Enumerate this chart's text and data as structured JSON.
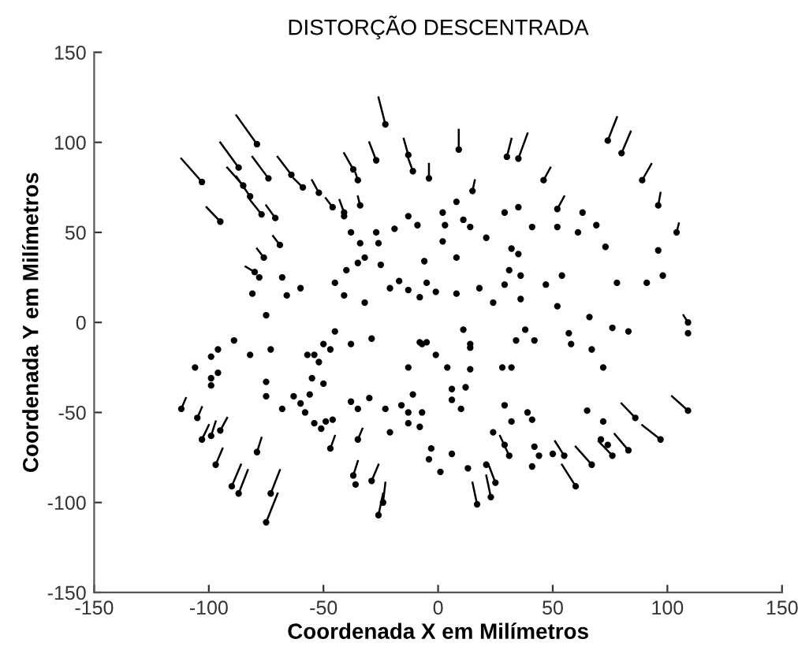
{
  "chart_data": {
    "type": "scatter",
    "title": "DISTORÇÃO DESCENTRADA",
    "xlabel": "Coordenada X em Milímetros",
    "ylabel": "Coordenada Y em Milímetros",
    "xlim": [
      -150,
      150
    ],
    "ylim": [
      -150,
      150
    ],
    "xticks": [
      -150,
      -100,
      -50,
      0,
      50,
      100,
      150
    ],
    "yticks": [
      -150,
      -100,
      -50,
      0,
      50,
      100,
      150
    ],
    "grid": false,
    "marker": "circle",
    "series": [
      {
        "color": "#000000",
        "x": [
          -103,
          -95,
          -79,
          -87,
          -85,
          -82,
          -74,
          -77,
          -71,
          -64,
          -59,
          -52,
          -46,
          -41,
          -37,
          -35,
          -27,
          -23,
          -13,
          -11,
          -34,
          -41,
          -38,
          -27,
          -69,
          -76,
          -80,
          -78,
          -81,
          -75,
          -68,
          -66,
          -60,
          -45,
          -41,
          -40,
          -35,
          -32,
          -34,
          -26,
          -25,
          -32,
          -21,
          -17,
          -13,
          -8,
          -19,
          -13,
          -9,
          -6,
          9,
          30,
          35,
          74,
          80,
          89,
          96,
          104,
          96,
          98,
          91,
          78,
          73,
          69,
          63,
          61,
          52,
          52,
          46,
          41,
          35,
          29,
          15,
          8,
          2,
          -4,
          11,
          14,
          3,
          21,
          2,
          8,
          32,
          35,
          31,
          36,
          29,
          47,
          54,
          36,
          24,
          18,
          8,
          -1,
          -5,
          52,
          66,
          -112,
          -105,
          -103,
          -99,
          -95,
          -97,
          -90,
          -87,
          -79,
          -73,
          -75,
          -106,
          -99,
          -96,
          -99,
          -99,
          -96,
          -89,
          -82,
          -73,
          -75,
          -75,
          -68,
          -63,
          -60,
          -58,
          -56,
          -55,
          -57,
          -54,
          -52,
          -50,
          -47,
          -45,
          -50,
          -54,
          -51,
          -49,
          -46,
          -47,
          -38,
          -29,
          -38,
          -35,
          -30,
          -35,
          -37,
          -36,
          -29,
          -24,
          -26,
          -23,
          -21,
          -16,
          -13,
          -11,
          -13,
          -13,
          -7,
          -8,
          -8,
          -5,
          -1,
          11,
          14,
          14,
          4,
          14,
          -7,
          6,
          6,
          12,
          10,
          28,
          32,
          38,
          34,
          42,
          57,
          58,
          67,
          72,
          76,
          83,
          109,
          109,
          109,
          97,
          86,
          83,
          76,
          74,
          71,
          72,
          65,
          67,
          60,
          55,
          50,
          44,
          41,
          42,
          41,
          39,
          32,
          29,
          31,
          29,
          24,
          25,
          23,
          21,
          17,
          13,
          6,
          1,
          -3,
          -4
        ],
        "values": [
          78,
          56,
          99,
          86,
          76,
          70,
          80,
          60,
          58,
          82,
          75,
          72,
          64,
          61,
          85,
          79,
          90,
          110,
          93,
          84,
          65,
          59,
          50,
          50,
          43,
          36,
          28,
          25,
          16,
          4,
          25,
          15,
          19,
          22,
          15,
          29,
          33,
          36,
          44,
          44,
          32,
          11,
          19,
          23,
          18,
          14,
          52,
          59,
          54,
          34,
          96,
          92,
          91,
          101,
          94,
          79,
          65,
          50,
          40,
          26,
          22,
          22,
          42,
          54,
          61,
          50,
          63,
          53,
          79,
          53,
          64,
          61,
          73,
          67,
          61,
          80,
          57,
          53,
          54,
          47,
          45,
          36,
          41,
          38,
          29,
          26,
          21,
          21,
          26,
          13,
          11,
          19,
          16,
          17,
          22,
          9,
          3,
          -48,
          -53,
          -65,
          -63,
          -60,
          -79,
          -91,
          -95,
          -72,
          -95,
          -111,
          -25,
          -19,
          -15,
          -35,
          -31,
          -28,
          -10,
          -18,
          -15,
          -33,
          -41,
          -48,
          -41,
          -45,
          -50,
          -40,
          -31,
          -18,
          -18,
          -22,
          -12,
          -15,
          -5,
          -34,
          -56,
          -59,
          -55,
          -54,
          -70,
          -12,
          -9,
          -44,
          -48,
          -42,
          -65,
          -85,
          -90,
          -88,
          -100,
          -107,
          -48,
          -61,
          -46,
          -25,
          -40,
          -56,
          -50,
          -12,
          -58,
          -11,
          -11,
          -18,
          -4,
          -12,
          -14,
          -25,
          -26,
          -50,
          -37,
          -43,
          -36,
          -48,
          -25,
          -25,
          -4,
          -10,
          -10,
          -6,
          -12,
          -15,
          -25,
          -3,
          -5,
          0,
          -6,
          -49,
          -65,
          -53,
          -71,
          -74,
          -68,
          -65,
          -55,
          -49,
          -79,
          -91,
          -74,
          -73,
          -74,
          -80,
          -69,
          -54,
          -50,
          -55,
          -46,
          -74,
          -68,
          -61,
          -89,
          -97,
          -79,
          -101,
          -81,
          -73,
          -83,
          -70,
          -76
        ]
      },
      {
        "type": "line",
        "color": "#000000",
        "marker": "none",
        "x": [
          -112,
          -103
        ],
        "values": [
          91,
          78
        ]
      },
      {
        "type": "line",
        "color": "#000000",
        "marker": "none",
        "x": [
          -101,
          -95
        ],
        "values": [
          64,
          56
        ]
      },
      {
        "type": "line",
        "color": "#000000",
        "marker": "none",
        "x": [
          -88,
          -79
        ],
        "values": [
          115,
          99
        ]
      },
      {
        "type": "line",
        "color": "#000000",
        "marker": "none",
        "x": [
          -95,
          -87
        ],
        "values": [
          100,
          86
        ]
      },
      {
        "type": "line",
        "color": "#000000",
        "marker": "none",
        "x": [
          -92,
          -85
        ],
        "values": [
          86,
          76
        ]
      },
      {
        "type": "line",
        "color": "#000000",
        "marker": "none",
        "x": [
          -88,
          -82
        ],
        "values": [
          81,
          70
        ]
      },
      {
        "type": "line",
        "color": "#000000",
        "marker": "none",
        "x": [
          -81,
          -74
        ],
        "values": [
          92,
          80
        ]
      },
      {
        "type": "line",
        "color": "#000000",
        "marker": "none",
        "x": [
          -82,
          -77
        ],
        "values": [
          68,
          60
        ]
      },
      {
        "type": "line",
        "color": "#000000",
        "marker": "none",
        "x": [
          -75,
          -71
        ],
        "values": [
          65,
          58
        ]
      },
      {
        "type": "line",
        "color": "#000000",
        "marker": "none",
        "x": [
          -70,
          -64
        ],
        "values": [
          92,
          82
        ]
      },
      {
        "type": "line",
        "color": "#000000",
        "marker": "none",
        "x": [
          -63,
          -59
        ],
        "values": [
          80,
          75
        ]
      },
      {
        "type": "line",
        "color": "#000000",
        "marker": "none",
        "x": [
          -55,
          -52
        ],
        "values": [
          79,
          72
        ]
      },
      {
        "type": "line",
        "color": "#000000",
        "marker": "none",
        "x": [
          -49,
          -46
        ],
        "values": [
          69,
          64
        ]
      },
      {
        "type": "line",
        "color": "#000000",
        "marker": "none",
        "x": [
          -43,
          -41
        ],
        "values": [
          68,
          61
        ]
      },
      {
        "type": "line",
        "color": "#000000",
        "marker": "none",
        "x": [
          -41,
          -37
        ],
        "values": [
          94,
          85
        ]
      },
      {
        "type": "line",
        "color": "#000000",
        "marker": "none",
        "x": [
          -36,
          -35
        ],
        "values": [
          83,
          79
        ]
      },
      {
        "type": "line",
        "color": "#000000",
        "marker": "none",
        "x": [
          -30,
          -27
        ],
        "values": [
          100,
          90
        ]
      },
      {
        "type": "line",
        "color": "#000000",
        "marker": "none",
        "x": [
          -26,
          -23
        ],
        "values": [
          125,
          110
        ]
      },
      {
        "type": "line",
        "color": "#000000",
        "marker": "none",
        "x": [
          -15,
          -13
        ],
        "values": [
          102,
          93
        ]
      },
      {
        "type": "line",
        "color": "#000000",
        "marker": "none",
        "x": [
          -13,
          -11
        ],
        "values": [
          91,
          84
        ]
      },
      {
        "type": "line",
        "color": "#000000",
        "marker": "none",
        "x": [
          -35,
          -34
        ],
        "values": [
          70,
          65
        ]
      },
      {
        "type": "line",
        "color": "#000000",
        "marker": "none",
        "x": [
          -72,
          -69
        ],
        "values": [
          48,
          43
        ]
      },
      {
        "type": "line",
        "color": "#000000",
        "marker": "none",
        "x": [
          -79,
          -76
        ],
        "values": [
          41,
          36
        ]
      },
      {
        "type": "line",
        "color": "#000000",
        "marker": "none",
        "x": [
          -84,
          -80
        ],
        "values": [
          31,
          28
        ]
      },
      {
        "type": "line",
        "color": "#000000",
        "marker": "none",
        "x": [
          9,
          9
        ],
        "values": [
          107,
          96
        ]
      },
      {
        "type": "line",
        "color": "#000000",
        "marker": "none",
        "x": [
          32,
          30
        ],
        "values": [
          102,
          92
        ]
      },
      {
        "type": "line",
        "color": "#000000",
        "marker": "none",
        "x": [
          39,
          35
        ],
        "values": [
          105,
          91
        ]
      },
      {
        "type": "line",
        "color": "#000000",
        "marker": "none",
        "x": [
          78,
          74
        ],
        "values": [
          114,
          101
        ]
      },
      {
        "type": "line",
        "color": "#000000",
        "marker": "none",
        "x": [
          84,
          80
        ],
        "values": [
          106,
          94
        ]
      },
      {
        "type": "line",
        "color": "#000000",
        "marker": "none",
        "x": [
          93,
          89
        ],
        "values": [
          88,
          79
        ]
      },
      {
        "type": "line",
        "color": "#000000",
        "marker": "none",
        "x": [
          97,
          96
        ],
        "values": [
          72,
          65
        ]
      },
      {
        "type": "line",
        "color": "#000000",
        "marker": "none",
        "x": [
          105,
          104
        ],
        "values": [
          55,
          50
        ]
      },
      {
        "type": "line",
        "color": "#000000",
        "marker": "none",
        "x": [
          55,
          52
        ],
        "values": [
          70,
          63
        ]
      },
      {
        "type": "line",
        "color": "#000000",
        "marker": "none",
        "x": [
          49,
          46
        ],
        "values": [
          86,
          79
        ]
      },
      {
        "type": "line",
        "color": "#000000",
        "marker": "none",
        "x": [
          16,
          15
        ],
        "values": [
          79,
          73
        ]
      },
      {
        "type": "line",
        "color": "#000000",
        "marker": "none",
        "x": [
          -4,
          -4
        ],
        "values": [
          88,
          80
        ]
      },
      {
        "type": "line",
        "color": "#000000",
        "marker": "none",
        "x": [
          -110,
          -112
        ],
        "values": [
          -42,
          -48
        ]
      },
      {
        "type": "line",
        "color": "#000000",
        "marker": "none",
        "x": [
          -103,
          -105
        ],
        "values": [
          -47,
          -53
        ]
      },
      {
        "type": "line",
        "color": "#000000",
        "marker": "none",
        "x": [
          -100,
          -103
        ],
        "values": [
          -57,
          -65
        ]
      },
      {
        "type": "line",
        "color": "#000000",
        "marker": "none",
        "x": [
          -97,
          -99
        ],
        "values": [
          -55,
          -63
        ]
      },
      {
        "type": "line",
        "color": "#000000",
        "marker": "none",
        "x": [
          -92,
          -95
        ],
        "values": [
          -53,
          -60
        ]
      },
      {
        "type": "line",
        "color": "#000000",
        "marker": "none",
        "x": [
          -94,
          -97
        ],
        "values": [
          -70,
          -79
        ]
      },
      {
        "type": "line",
        "color": "#000000",
        "marker": "none",
        "x": [
          -86,
          -90
        ],
        "values": [
          -79,
          -91
        ]
      },
      {
        "type": "line",
        "color": "#000000",
        "marker": "none",
        "x": [
          -83,
          -87
        ],
        "values": [
          -82,
          -95
        ]
      },
      {
        "type": "line",
        "color": "#000000",
        "marker": "none",
        "x": [
          -77,
          -79
        ],
        "values": [
          -64,
          -72
        ]
      },
      {
        "type": "line",
        "color": "#000000",
        "marker": "none",
        "x": [
          -69,
          -73
        ],
        "values": [
          -82,
          -95
        ]
      },
      {
        "type": "line",
        "color": "#000000",
        "marker": "none",
        "x": [
          -70,
          -75
        ],
        "values": [
          -95,
          -111
        ]
      },
      {
        "type": "line",
        "color": "#000000",
        "marker": "none",
        "x": [
          -45,
          -47
        ],
        "values": [
          -63,
          -70
        ]
      },
      {
        "type": "line",
        "color": "#000000",
        "marker": "none",
        "x": [
          -23,
          -24
        ],
        "values": [
          -89,
          -100
        ]
      },
      {
        "type": "line",
        "color": "#000000",
        "marker": "none",
        "x": [
          -24,
          -26
        ],
        "values": [
          -95,
          -107
        ]
      },
      {
        "type": "line",
        "color": "#000000",
        "marker": "none",
        "x": [
          -33,
          -35
        ],
        "values": [
          -59,
          -65
        ]
      },
      {
        "type": "line",
        "color": "#000000",
        "marker": "none",
        "x": [
          -35,
          -37
        ],
        "values": [
          -77,
          -85
        ]
      },
      {
        "type": "line",
        "color": "#000000",
        "marker": "none",
        "x": [
          -26,
          -29
        ],
        "values": [
          -79,
          -88
        ]
      },
      {
        "type": "line",
        "color": "#000000",
        "marker": "none",
        "x": [
          102,
          109
        ],
        "values": [
          -41,
          -49
        ]
      },
      {
        "type": "line",
        "color": "#000000",
        "marker": "none",
        "x": [
          89,
          97
        ],
        "values": [
          -57,
          -65
        ]
      },
      {
        "type": "line",
        "color": "#000000",
        "marker": "none",
        "x": [
          80,
          86
        ],
        "values": [
          -45,
          -53
        ]
      },
      {
        "type": "line",
        "color": "#000000",
        "marker": "none",
        "x": [
          77,
          83
        ],
        "values": [
          -62,
          -71
        ]
      },
      {
        "type": "line",
        "color": "#000000",
        "marker": "none",
        "x": [
          70,
          76
        ],
        "values": [
          -66,
          -74
        ]
      },
      {
        "type": "line",
        "color": "#000000",
        "marker": "none",
        "x": [
          60,
          67
        ],
        "values": [
          -69,
          -79
        ]
      },
      {
        "type": "line",
        "color": "#000000",
        "marker": "none",
        "x": [
          54,
          60
        ],
        "values": [
          -79,
          -91
        ]
      },
      {
        "type": "line",
        "color": "#000000",
        "marker": "none",
        "x": [
          51,
          55
        ],
        "values": [
          -66,
          -74
        ]
      },
      {
        "type": "line",
        "color": "#000000",
        "marker": "none",
        "x": [
          27,
          31
        ],
        "values": [
          -63,
          -74
        ]
      },
      {
        "type": "line",
        "color": "#000000",
        "marker": "none",
        "x": [
          22,
          25
        ],
        "values": [
          -79,
          -89
        ]
      },
      {
        "type": "line",
        "color": "#000000",
        "marker": "none",
        "x": [
          21,
          23
        ],
        "values": [
          -85,
          -97
        ]
      },
      {
        "type": "line",
        "color": "#000000",
        "marker": "none",
        "x": [
          15,
          17
        ],
        "values": [
          -89,
          -101
        ]
      },
      {
        "type": "line",
        "color": "#000000",
        "marker": "none",
        "x": [
          107,
          109
        ],
        "values": [
          4,
          0
        ]
      }
    ]
  }
}
